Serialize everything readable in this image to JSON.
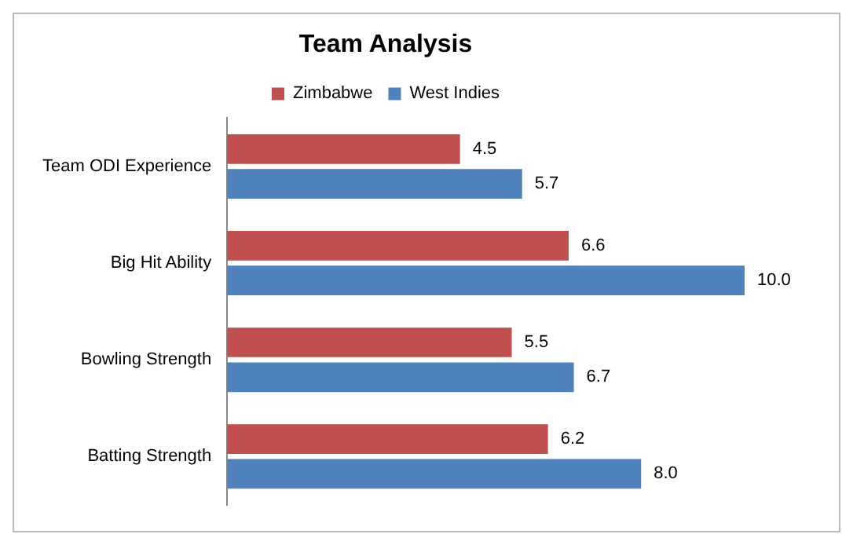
{
  "chart_data": {
    "type": "bar",
    "orientation": "horizontal",
    "title": "Team Analysis",
    "categories": [
      "Team ODI Experience",
      "Big Hit Ability",
      "Bowling Strength",
      "Batting Strength"
    ],
    "series": [
      {
        "name": "Zimbabwe",
        "color": "#c0504d",
        "values": [
          4.5,
          6.6,
          5.5,
          6.2
        ],
        "value_labels": [
          "4.5",
          "6.6",
          "5.5",
          "6.2"
        ]
      },
      {
        "name": "West Indies",
        "color": "#4f81bd",
        "values": [
          5.7,
          10.0,
          6.7,
          8.0
        ],
        "value_labels": [
          "5.7",
          "10.0",
          "6.7",
          "8.0"
        ]
      }
    ],
    "legend": "top",
    "grid": false,
    "tick_labels": "y"
  }
}
